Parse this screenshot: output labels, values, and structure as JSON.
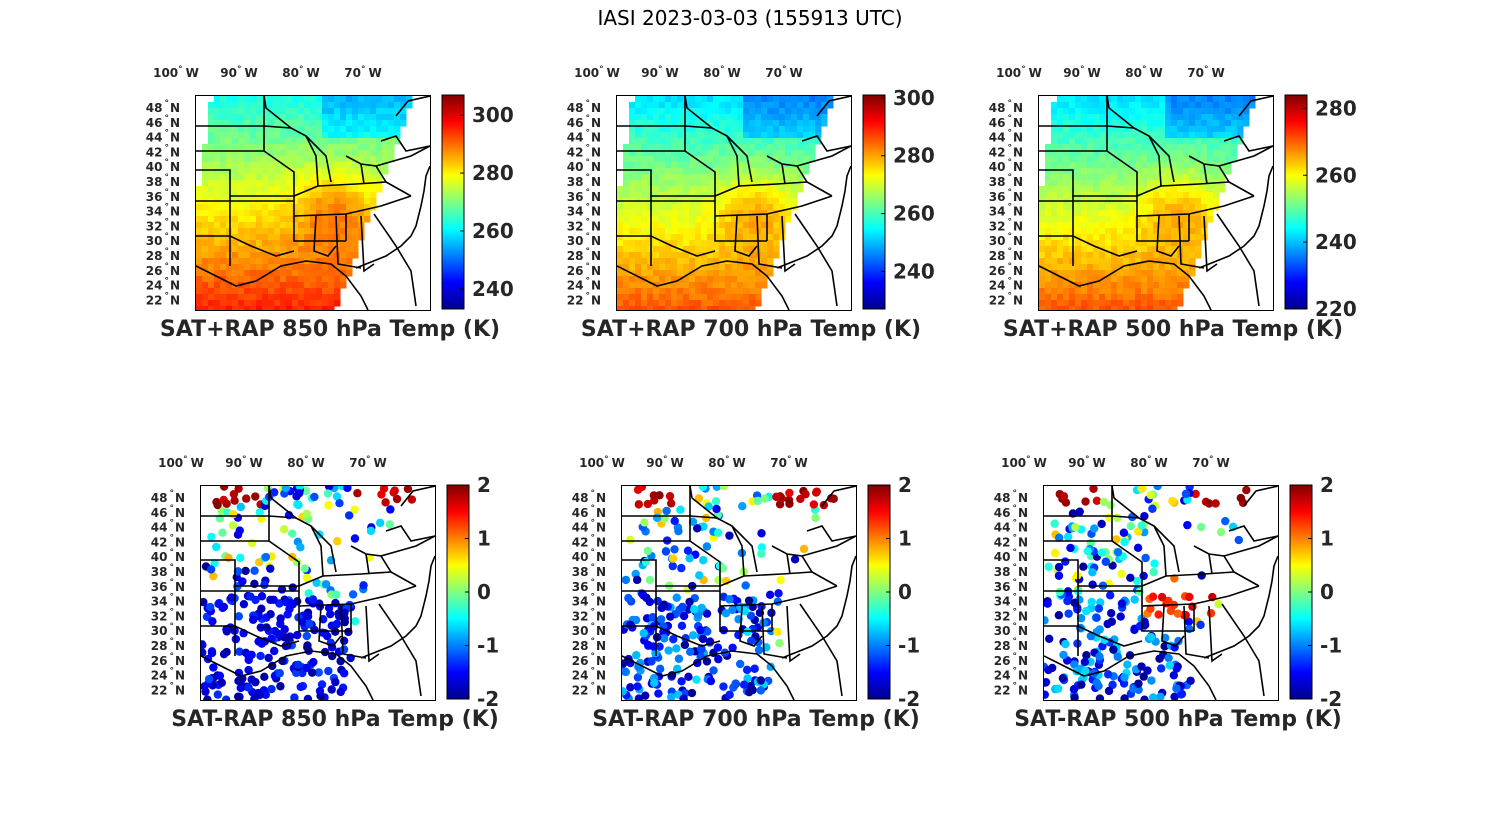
{
  "title": "IASI 2023-03-03 (155913 UTC)",
  "lon_labels": [
    "100",
    "90",
    "80",
    "70"
  ],
  "lon_hemisphere": "W",
  "lat_labels": [
    "48",
    "46",
    "44",
    "42",
    "40",
    "38",
    "36",
    "34",
    "32",
    "30",
    "28",
    "26",
    "24",
    "22"
  ],
  "lat_hemisphere": "N",
  "colormap": [
    "#00008f",
    "#0000ff",
    "#0080ff",
    "#00ffff",
    "#80ff80",
    "#ffff00",
    "#ff8000",
    "#ff0000",
    "#800000"
  ],
  "chart_data": [
    {
      "type": "heatmap",
      "title": "SAT+RAP 850 hPa Temp (K)",
      "colorbar_range": [
        233,
        307
      ],
      "colorbar_ticks": [
        "240",
        "260",
        "280",
        "300"
      ],
      "colorbar_values": [
        240,
        260,
        280,
        300
      ]
    },
    {
      "type": "heatmap",
      "title": "SAT+RAP 700 hPa Temp (K)",
      "colorbar_range": [
        227,
        301
      ],
      "colorbar_ticks": [
        "240",
        "260",
        "280",
        "300"
      ],
      "colorbar_values": [
        240,
        260,
        280,
        300
      ]
    },
    {
      "type": "heatmap",
      "title": "SAT+RAP 500 hPa Temp (K)",
      "colorbar_range": [
        220,
        284
      ],
      "colorbar_ticks": [
        "220",
        "240",
        "260",
        "280"
      ],
      "colorbar_values": [
        220,
        240,
        260,
        280
      ]
    },
    {
      "type": "heatmap",
      "title": "SAT-RAP 850 hPa Temp (K)",
      "colorbar_range": [
        -2,
        2
      ],
      "colorbar_ticks": [
        "-2",
        "-1",
        "0",
        "1",
        "2"
      ],
      "colorbar_values": [
        -2,
        -1,
        0,
        1,
        2
      ]
    },
    {
      "type": "heatmap",
      "title": "SAT-RAP 700 hPa Temp (K)",
      "colorbar_range": [
        -2,
        2
      ],
      "colorbar_ticks": [
        "-2",
        "-1",
        "0",
        "1",
        "2"
      ],
      "colorbar_values": [
        -2,
        -1,
        0,
        1,
        2
      ]
    },
    {
      "type": "heatmap",
      "title": "SAT-RAP 500 hPa Temp (K)",
      "colorbar_range": [
        -2,
        2
      ],
      "colorbar_ticks": [
        "-2",
        "-1",
        "0",
        "1",
        "2"
      ],
      "colorbar_values": [
        -2,
        -1,
        0,
        1,
        2
      ]
    }
  ]
}
